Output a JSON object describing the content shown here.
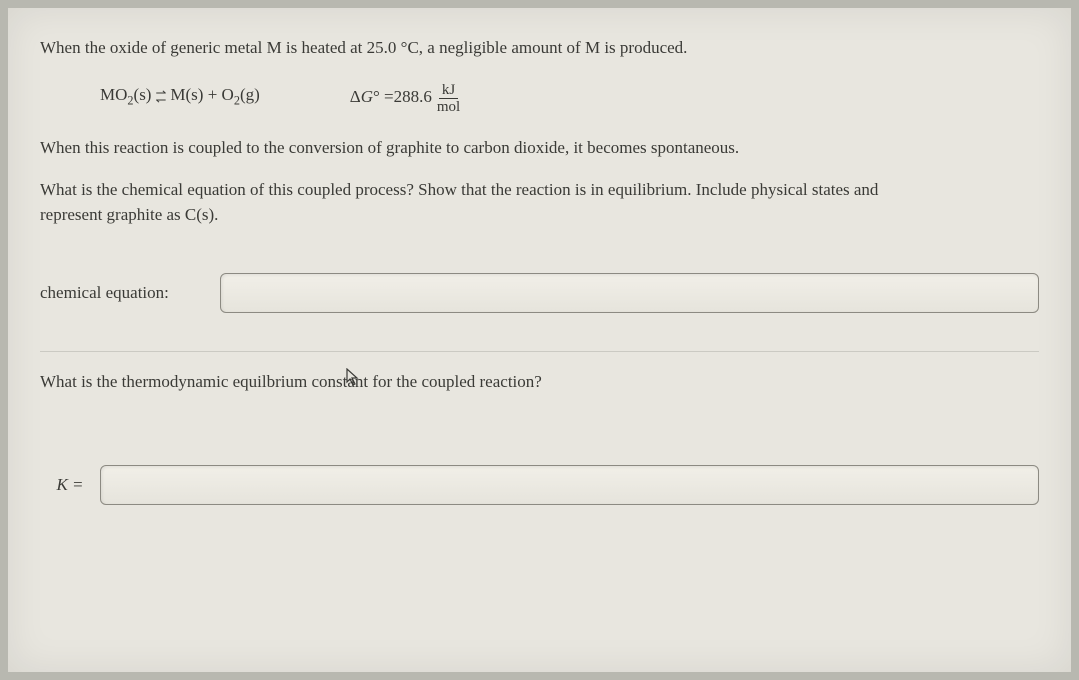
{
  "intro": "When the oxide of generic metal M is heated at 25.0 °C, a negligible amount of M is produced.",
  "reaction": {
    "left_html": "MO<sub>2</sub>(s)",
    "right_html": "M(s) + O<sub>2</sub>(g)",
    "delta_g_label_html": "Δ<span class=\"italic\">G</span>° = ",
    "delta_g_value": "288.6",
    "unit_num": "kJ",
    "unit_den": "mol"
  },
  "coupled_line": "When this reaction is coupled to the conversion of graphite to carbon dioxide, it becomes spontaneous.",
  "question1_line1": "What is the chemical equation of this coupled process? Show that the reaction is in equilibrium. Include physical states and",
  "question1_line2": "represent graphite as C(s).",
  "chem_eq_label": "chemical equation:",
  "chem_eq_value": "",
  "question2": "What is the thermodynamic equilbrium constant for the coupled reaction?",
  "k_label_html": "<span class=\"italic\">K</span> =",
  "k_value": "",
  "colors": {
    "page_bg": "#e8e6df",
    "text": "#3a3a36",
    "input_border": "#8c8a82"
  }
}
